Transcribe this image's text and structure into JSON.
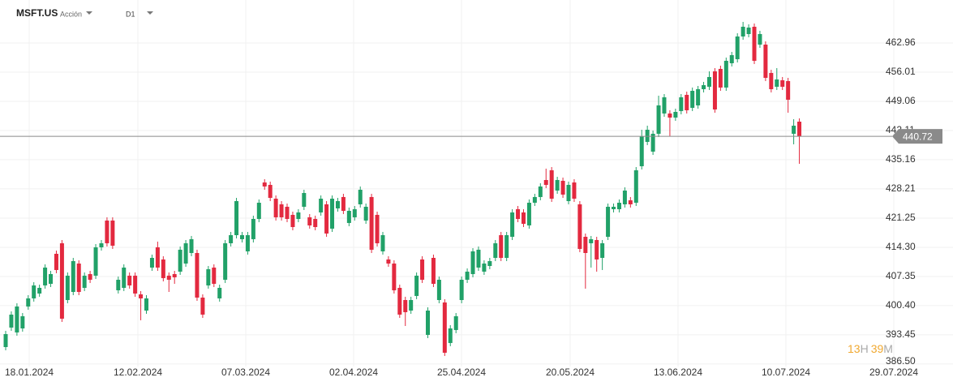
{
  "header": {
    "symbol": "MSFT.US",
    "kind": "Acción",
    "timeframe": "D1"
  },
  "countdown": {
    "hours": "13",
    "hours_unit": "H",
    "minutes": "39",
    "minutes_unit": "M"
  },
  "chart_data": {
    "type": "candlestick",
    "up_color": "#21a168",
    "down_color": "#e3293f",
    "grid": true,
    "last_price": 440.72,
    "ylim": [
      386.29,
      473.19
    ],
    "yticks": [
      462.96,
      456.01,
      449.06,
      442.11,
      435.16,
      428.21,
      421.25,
      {
        "value": 414.3,
        "label": "414.30"
      },
      407.35,
      {
        "value": 400.4,
        "label": "400.40"
      },
      393.45,
      {
        "value": 386.5,
        "label": "386.50"
      }
    ],
    "xlim": [
      -1.01,
      168.3
    ],
    "xticks": [
      {
        "value": 4.18,
        "label": "18.01.2024"
      },
      {
        "value": 23.49,
        "label": "12.02.2024"
      },
      {
        "value": 42.65,
        "label": "07.03.2024"
      },
      {
        "value": 61.82,
        "label": "02.04.2024"
      },
      {
        "value": 80.98,
        "label": "25.04.2024"
      },
      {
        "value": 100.29,
        "label": "20.05.2024"
      },
      {
        "value": 119.45,
        "label": "13.06.2024"
      },
      {
        "value": 138.62,
        "label": "10.07.2024"
      },
      {
        "value": 157.78,
        "label": "29.07.2024"
      }
    ],
    "open": [
      390.54,
      395.18,
      394.02,
      394.98,
      400.2,
      402.13,
      403.29,
      405.22,
      405.6,
      412.75,
      415.26,
      401.74,
      403.67,
      410.43,
      404.64,
      407.92,
      407.54,
      414.29,
      420.67,
      420.67,
      404.06,
      404.64,
      407.54,
      407.54,
      403.09,
      399.23,
      409.47,
      414.29,
      411.4,
      407.54,
      407.92,
      408.5,
      410.43,
      412.94,
      412.94,
      402.32,
      405.22,
      409.47,
      402.13,
      406.57,
      415.26,
      417.19,
      416.23,
      413.33,
      416.23,
      421.05,
      429.74,
      429.16,
      425.88,
      424.53,
      423.95,
      422.02,
      421.05,
      423.95,
      421.44,
      421.05,
      422.6,
      424.53,
      418.74,
      423.56,
      426.27,
      420.09,
      421.44,
      424.53,
      420.67,
      426.27,
      422.02,
      413.33,
      411.4,
      410.43,
      404.64,
      401.74,
      399.23,
      402.71,
      411.4,
      393.44,
      411.78,
      401.74,
      401.16,
      391.51,
      394.6,
      401.74,
      406.57,
      407.92,
      409.47,
      408.5,
      409.85,
      411.78,
      417.19,
      411.78,
      416.8,
      423.37,
      422.6,
      419.51,
      424.91,
      426.27,
      430.32,
      432.64,
      427.81,
      430.13,
      425.3,
      429.74,
      424.53,
      416.8,
      415.26,
      416.03,
      411.78,
      416.8,
      423.37,
      423.37,
      424.53,
      425.49,
      424.91,
      433.6,
      439.4,
      437.08,
      441.33,
      446.16,
      446.16,
      445.19,
      446.74,
      450.6,
      447.51,
      448.09,
      451.95,
      452.53,
      456.2,
      456.78,
      452.34,
      458.13,
      459.09,
      464.5,
      465.08,
      466.82,
      462.57,
      462.57,
      455.81,
      452.53,
      454.07,
      453.88,
      441.33,
      444.22
    ],
    "high": [
      394.41,
      399.04,
      400.97,
      398.65,
      402.9,
      405.99,
      405.41,
      410.24,
      408.69,
      413.52,
      416.03,
      408.31,
      411.78,
      411.2,
      408.31,
      408.69,
      415.07,
      416.03,
      421.44,
      421.44,
      407.34,
      410.24,
      408.31,
      408.31,
      403.87,
      402.9,
      412.56,
      415.65,
      412.17,
      408.31,
      408.69,
      414.49,
      416.03,
      417.0,
      413.72,
      403.09,
      409.85,
      410.24,
      405.41,
      416.03,
      417.96,
      426.07,
      417.96,
      417.96,
      421.83,
      425.69,
      430.51,
      429.94,
      426.65,
      425.3,
      424.72,
      422.79,
      423.37,
      428.0,
      422.21,
      421.83,
      426.65,
      425.3,
      426.65,
      426.07,
      427.04,
      423.76,
      424.14,
      428.78,
      424.72,
      427.04,
      422.79,
      417.96,
      412.17,
      411.2,
      405.41,
      402.52,
      402.52,
      408.31,
      412.17,
      400.01,
      412.56,
      407.34,
      401.94,
      395.76,
      398.65,
      407.34,
      409.27,
      414.1,
      414.49,
      411.2,
      411.78,
      416.03,
      417.96,
      417.96,
      423.37,
      424.14,
      423.37,
      425.69,
      427.04,
      429.55,
      433.03,
      433.41,
      431.09,
      430.9,
      429.94,
      430.51,
      425.3,
      417.58,
      417.0,
      416.8,
      416.03,
      424.72,
      424.72,
      425.69,
      428.58,
      426.27,
      433.41,
      442.29,
      443.26,
      442.1,
      450.4,
      450.79,
      446.93,
      447.31,
      450.79,
      451.37,
      452.34,
      452.72,
      453.69,
      456.2,
      456.97,
      457.55,
      459.48,
      460.83,
      465.27,
      467.98,
      467.4,
      467.59,
      465.85,
      463.34,
      456.58,
      456.97,
      454.85,
      454.65,
      444.8,
      445.0
    ],
    "low": [
      389.77,
      394.41,
      393.25,
      394.21,
      399.43,
      401.36,
      402.52,
      404.45,
      404.83,
      408.12,
      396.53,
      400.97,
      402.9,
      402.9,
      403.87,
      405.8,
      406.76,
      413.52,
      414.49,
      413.91,
      403.29,
      403.87,
      404.45,
      402.52,
      396.92,
      398.46,
      408.69,
      408.69,
      406.18,
      403.67,
      405.6,
      407.73,
      409.66,
      412.17,
      401.55,
      397.49,
      404.45,
      404.83,
      401.36,
      405.8,
      414.49,
      416.42,
      415.45,
      412.56,
      415.45,
      420.28,
      428.0,
      425.3,
      420.67,
      420.67,
      420.28,
      418.35,
      420.28,
      423.18,
      418.74,
      418.35,
      421.83,
      416.8,
      417.96,
      422.79,
      422.21,
      419.32,
      420.67,
      423.76,
      419.89,
      412.94,
      414.49,
      412.56,
      409.66,
      403.29,
      397.49,
      395.56,
      398.46,
      401.94,
      405.8,
      392.67,
      404.83,
      400.97,
      388.42,
      390.74,
      393.83,
      400.97,
      405.8,
      407.15,
      408.69,
      407.73,
      409.08,
      411.01,
      411.01,
      411.01,
      416.03,
      420.28,
      419.12,
      418.74,
      424.14,
      425.49,
      428.39,
      425.11,
      427.04,
      426.07,
      424.53,
      425.11,
      413.14,
      404.45,
      409.47,
      408.5,
      408.89,
      416.03,
      422.6,
      422.6,
      423.76,
      423.76,
      424.14,
      432.83,
      438.63,
      436.31,
      440.56,
      445.38,
      440.75,
      444.42,
      445.96,
      446.16,
      446.74,
      447.31,
      451.18,
      451.76,
      446.35,
      451.56,
      451.56,
      457.36,
      458.32,
      463.73,
      464.31,
      457.94,
      461.8,
      453.88,
      451.18,
      451.76,
      451.76,
      446.35,
      438.82,
      434.18
    ],
    "close": [
      393.63,
      398.27,
      400.2,
      397.88,
      402.13,
      405.22,
      404.64,
      409.47,
      407.92,
      408.89,
      397.3,
      407.54,
      411.01,
      403.67,
      407.54,
      406.57,
      414.29,
      415.26,
      415.26,
      414.68,
      406.57,
      409.47,
      405.22,
      403.29,
      402.13,
      402.13,
      411.78,
      409.47,
      406.96,
      406.57,
      407.15,
      413.72,
      415.26,
      416.23,
      402.32,
      398.27,
      409.08,
      405.6,
      404.64,
      415.26,
      417.19,
      425.3,
      417.19,
      417.19,
      421.05,
      424.91,
      428.78,
      426.07,
      421.44,
      421.44,
      421.05,
      419.12,
      422.6,
      427.23,
      419.51,
      419.12,
      425.88,
      417.58,
      425.88,
      425.3,
      422.98,
      422.98,
      423.37,
      428.0,
      423.95,
      413.72,
      415.26,
      417.19,
      410.43,
      404.06,
      398.27,
      398.85,
      401.74,
      407.54,
      406.57,
      399.23,
      405.6,
      406.57,
      389.19,
      394.98,
      397.88,
      406.57,
      408.5,
      413.33,
      413.72,
      410.43,
      411.01,
      415.26,
      411.78,
      417.19,
      422.6,
      421.05,
      419.89,
      424.91,
      426.27,
      428.78,
      429.16,
      425.88,
      430.32,
      426.85,
      429.16,
      425.88,
      413.91,
      412.94,
      416.23,
      411.4,
      415.26,
      423.95,
      423.95,
      424.91,
      427.81,
      424.53,
      432.64,
      440.75,
      442.29,
      441.33,
      448.09,
      450.02,
      445.19,
      446.54,
      450.02,
      446.93,
      451.56,
      451.95,
      452.91,
      454.85,
      447.12,
      452.34,
      458.71,
      460.06,
      464.5,
      466.82,
      466.62,
      458.71,
      465.08,
      454.65,
      451.95,
      454.27,
      452.53,
      449.44,
      443.26,
      440.72
    ]
  }
}
